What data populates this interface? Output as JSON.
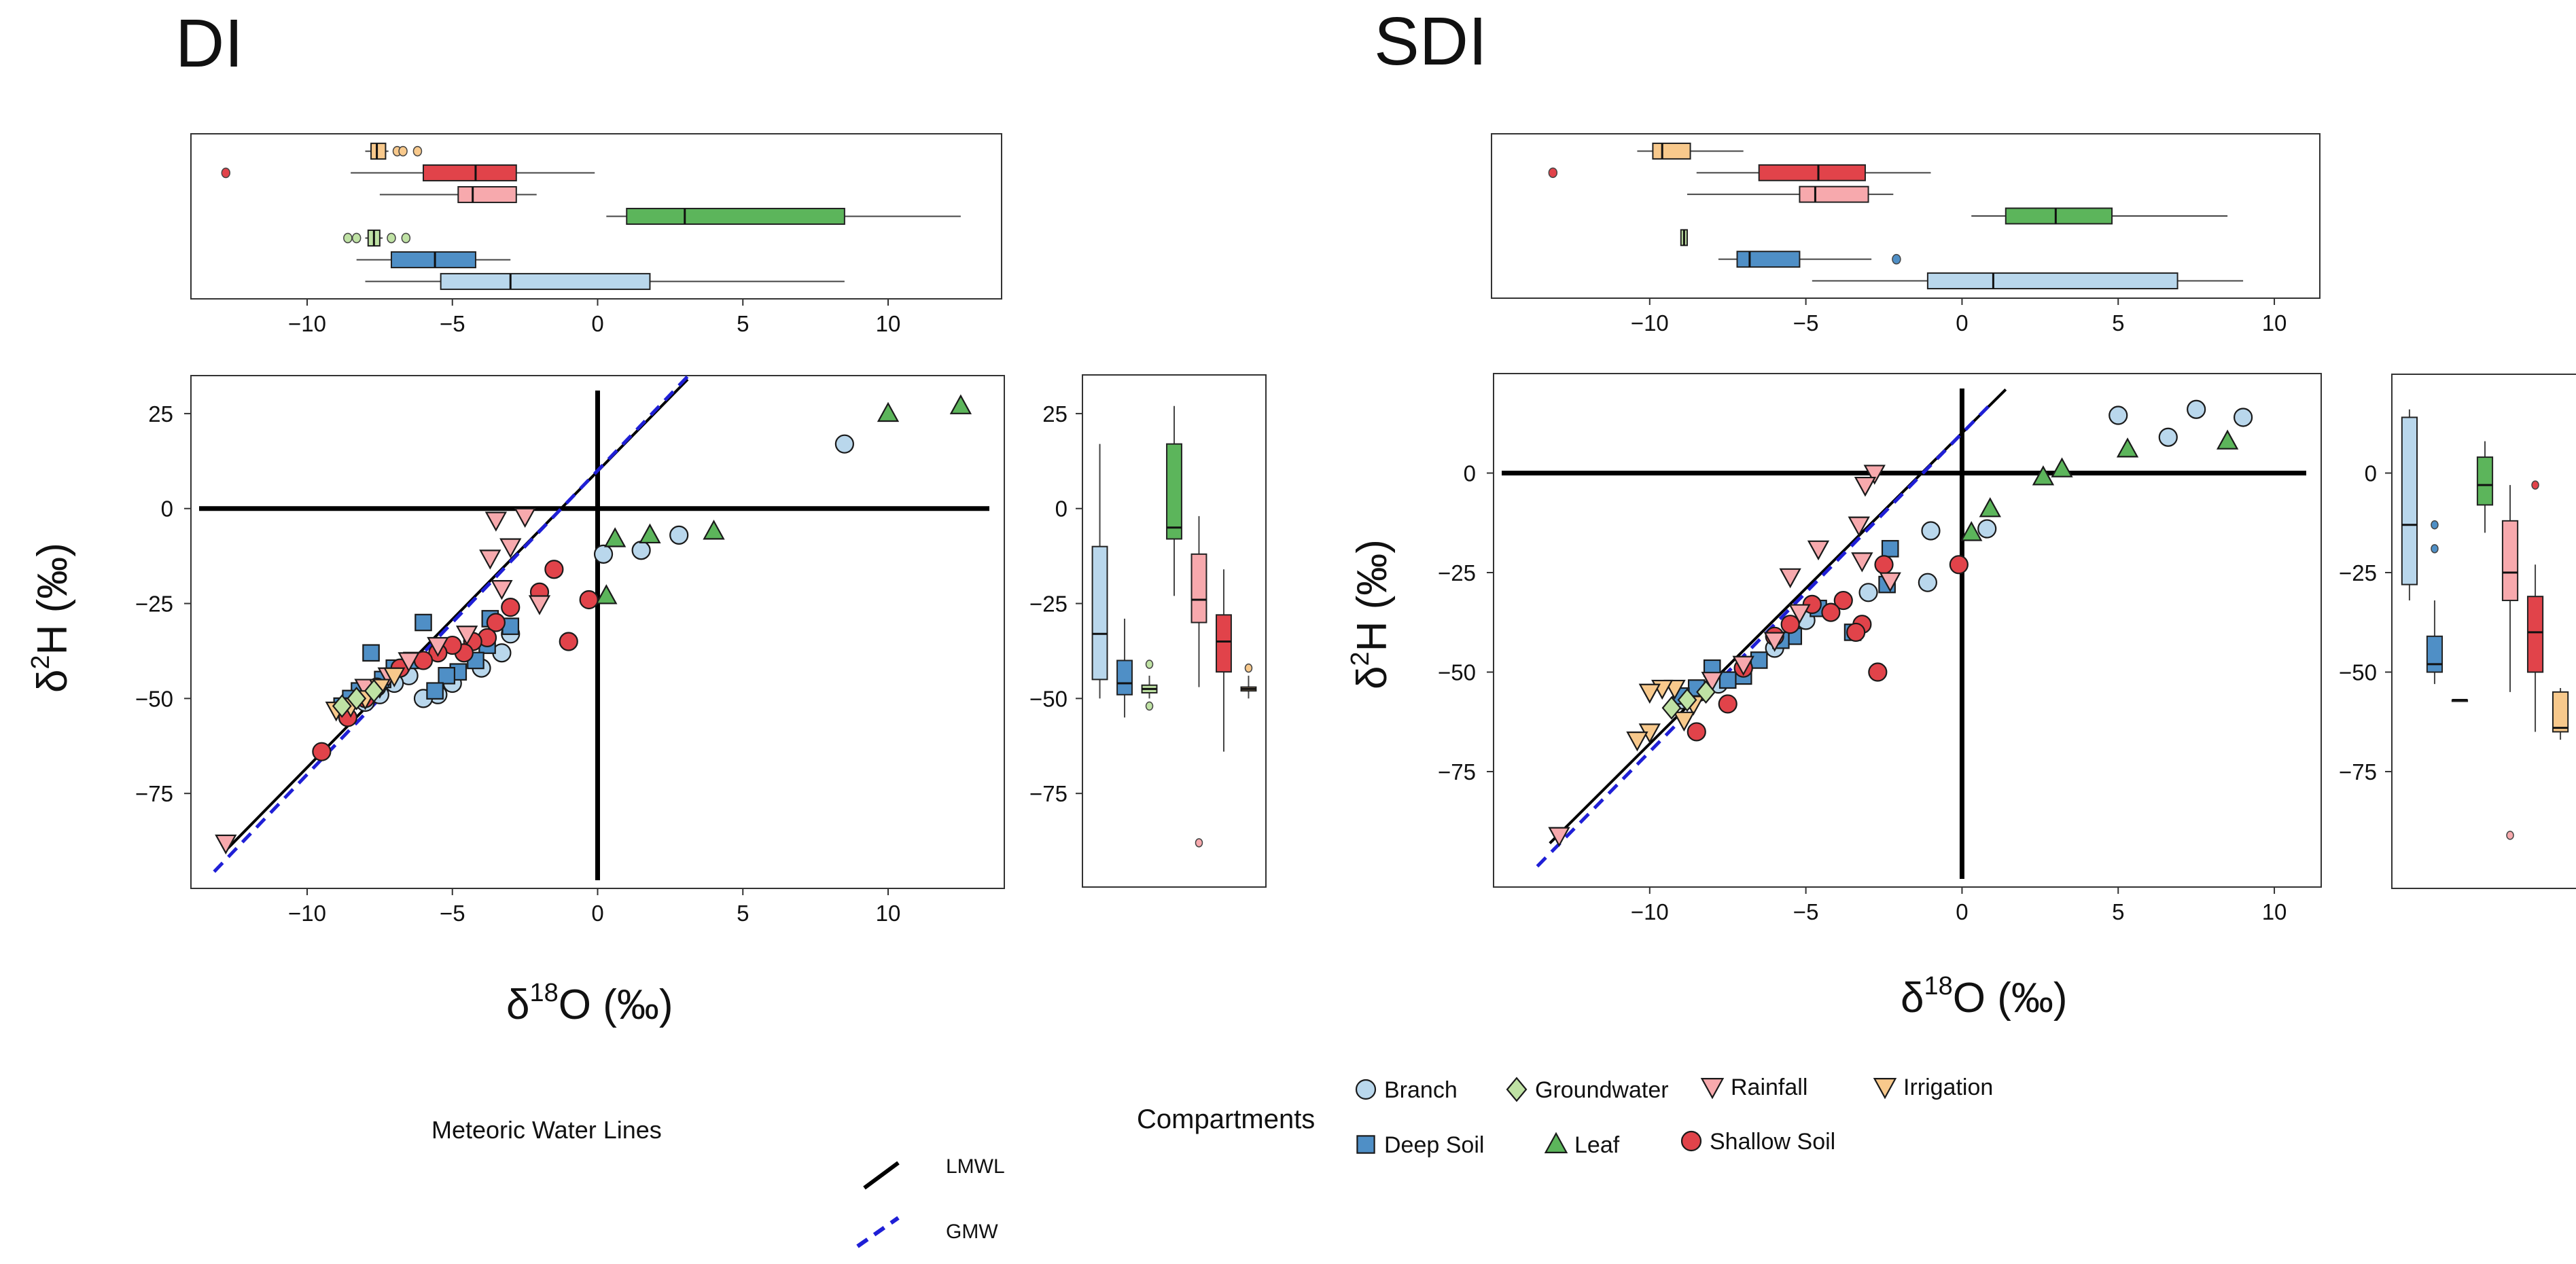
{
  "titles": {
    "left": "DI",
    "right": "SDI"
  },
  "axes": {
    "xlabel": "δ18O (‰)",
    "ylabel": "δ2H (‰)",
    "xlabel_base": "δ",
    "xlabel_sup": "18",
    "xlabel_tail": "O (‰)",
    "ylabel_base": "δ",
    "ylabel_sup": "2",
    "ylabel_tail": "H (‰)"
  },
  "legend": {
    "mwl_title": "Meteoric Water Lines",
    "lmwl": "LMWL",
    "gmw": "GMW",
    "compartments_title": "Compartments",
    "items": [
      {
        "key": "branch",
        "label": "Branch",
        "marker": "circle",
        "color": "#b9d7ec"
      },
      {
        "key": "groundwater",
        "label": "Groundwater",
        "marker": "diamond",
        "color": "#bfe2a4"
      },
      {
        "key": "rainfall",
        "label": "Rainfall",
        "marker": "tri-down",
        "color": "#f7a9ad"
      },
      {
        "key": "irrigation",
        "label": "Irrigation",
        "marker": "tri-down",
        "color": "#f8c98c"
      },
      {
        "key": "deep_soil",
        "label": "Deep Soil",
        "marker": "square",
        "color": "#4f8fc6"
      },
      {
        "key": "leaf",
        "label": "Leaf",
        "marker": "triangle",
        "color": "#5cb55b"
      },
      {
        "key": "shallow_soil",
        "label": "Shallow Soil",
        "marker": "circle",
        "color": "#e1434a"
      }
    ]
  },
  "chart_data": [
    {
      "panel": "DI",
      "type": "scatter",
      "title": "DI",
      "xlabel": "δ18O (‰)",
      "ylabel": "δ2H (‰)",
      "xlim": [
        -14,
        14
      ],
      "ylim": [
        -100,
        35
      ],
      "xticks": [
        -10,
        -5,
        0,
        5,
        10
      ],
      "yticks": [
        25,
        0,
        -25,
        -50,
        -75
      ],
      "lines": {
        "lmwl": {
          "x": [
            -12.8,
            3.1
          ],
          "y": [
            -90,
            34
          ]
        },
        "gmw": {
          "x": [
            -13.2,
            3.2
          ],
          "y": [
            -95.6,
            35.6
          ]
        }
      },
      "series": [
        {
          "key": "branch",
          "points": [
            [
              8.5,
              17
            ],
            [
              2.8,
              -7
            ],
            [
              1.5,
              -11
            ],
            [
              0.2,
              -12
            ],
            [
              -3,
              -33
            ],
            [
              -3.3,
              -38
            ],
            [
              -4,
              -42
            ],
            [
              -5,
              -46
            ],
            [
              -5.5,
              -49
            ],
            [
              -6,
              -50
            ],
            [
              -6.5,
              -44
            ],
            [
              -7,
              -46
            ],
            [
              -7.5,
              -49
            ],
            [
              -8,
              -51
            ]
          ]
        },
        {
          "key": "deep_soil",
          "points": [
            [
              -3.7,
              -29
            ],
            [
              -3,
              -31
            ],
            [
              -3.8,
              -36
            ],
            [
              -4.2,
              -40
            ],
            [
              -4.8,
              -43
            ],
            [
              -5.2,
              -44
            ],
            [
              -5.6,
              -48
            ],
            [
              -6,
              -30
            ],
            [
              -6.4,
              -40
            ],
            [
              -7,
              -42
            ],
            [
              -7.4,
              -45
            ],
            [
              -7.8,
              -38
            ],
            [
              -8.2,
              -48
            ],
            [
              -8.5,
              -50
            ],
            [
              -8.8,
              -52
            ]
          ]
        },
        {
          "key": "leaf",
          "points": [
            [
              12.5,
              27
            ],
            [
              10,
              25
            ],
            [
              4,
              -6
            ],
            [
              1.8,
              -7
            ],
            [
              0.6,
              -8
            ],
            [
              0.3,
              -23
            ]
          ]
        },
        {
          "key": "shallow_soil",
          "points": [
            [
              -1.5,
              -16
            ],
            [
              -1,
              -35
            ],
            [
              -2,
              -22
            ],
            [
              -3,
              -26
            ],
            [
              -3.5,
              -30
            ],
            [
              -3.8,
              -34
            ],
            [
              -4.3,
              -35
            ],
            [
              -4.6,
              -38
            ],
            [
              -5,
              -36
            ],
            [
              -5.5,
              -38
            ],
            [
              -6,
              -40
            ],
            [
              -6.8,
              -42
            ],
            [
              -7.6,
              -47
            ],
            [
              -8,
              -50
            ],
            [
              -8.6,
              -55
            ],
            [
              -9.5,
              -64
            ],
            [
              -0.3,
              -24
            ]
          ]
        },
        {
          "key": "rainfall",
          "points": [
            [
              -12.8,
              -88
            ],
            [
              -2.5,
              -2
            ],
            [
              -3.5,
              -3
            ],
            [
              -3,
              -10
            ],
            [
              -3.7,
              -13
            ],
            [
              -3.3,
              -21
            ],
            [
              -2,
              -25
            ],
            [
              -4.5,
              -33
            ],
            [
              -5.5,
              -36
            ],
            [
              -6.5,
              -40
            ],
            [
              -7.2,
              -44
            ],
            [
              -8,
              -47
            ]
          ]
        },
        {
          "key": "irrigation",
          "points": [
            [
              -7,
              -44
            ],
            [
              -7.5,
              -47
            ],
            [
              -8,
              -50
            ],
            [
              -8.5,
              -52
            ],
            [
              -9,
              -53
            ]
          ]
        },
        {
          "key": "groundwater",
          "points": [
            [
              -7.7,
              -48
            ],
            [
              -8.3,
              -50
            ],
            [
              -8.8,
              -52
            ]
          ]
        }
      ],
      "boxplot_x": [
        {
          "key": "irrigation",
          "q1": -7.8,
          "median": -7.6,
          "q3": -7.3,
          "whislo": -8,
          "whishi": -7.2,
          "fliers": [
            -6.9,
            -6.7,
            -6.2
          ]
        },
        {
          "key": "shallow_soil",
          "q1": -6,
          "median": -4.2,
          "q3": -2.8,
          "whislo": -8.5,
          "whishi": -0.1,
          "fliers": [
            -12.8
          ]
        },
        {
          "key": "rainfall",
          "q1": -4.8,
          "median": -4.3,
          "q3": -2.8,
          "whislo": -7.5,
          "whishi": -2.1,
          "fliers": []
        },
        {
          "key": "leaf",
          "q1": 1,
          "median": 3,
          "q3": 8.5,
          "whislo": 0.3,
          "whishi": 12.5,
          "fliers": []
        },
        {
          "key": "groundwater",
          "q1": -7.9,
          "median": -7.7,
          "q3": -7.5,
          "whislo": -8,
          "whishi": -7.4,
          "fliers": [
            -8.6,
            -8.3,
            -7.1,
            -6.6
          ]
        },
        {
          "key": "deep_soil",
          "q1": -7.1,
          "median": -5.6,
          "q3": -4.2,
          "whislo": -8.3,
          "whishi": -3,
          "fliers": []
        },
        {
          "key": "branch",
          "q1": -5.4,
          "median": -3,
          "q3": 1.8,
          "whislo": -8,
          "whishi": 8.5,
          "fliers": []
        }
      ],
      "boxplot_y": [
        {
          "key": "branch",
          "q1": -45,
          "median": -33,
          "q3": -10,
          "whislo": -50,
          "whishi": 17,
          "fliers": []
        },
        {
          "key": "deep_soil",
          "q1": -49,
          "median": -46,
          "q3": -40,
          "whislo": -55,
          "whishi": -29,
          "fliers": []
        },
        {
          "key": "groundwater",
          "q1": -48.5,
          "median": -47.5,
          "q3": -46.5,
          "whislo": -50,
          "whishi": -44,
          "fliers": [
            -52,
            -41
          ]
        },
        {
          "key": "leaf",
          "q1": -8,
          "median": -5,
          "q3": 17,
          "whislo": -23,
          "whishi": 27,
          "fliers": []
        },
        {
          "key": "rainfall",
          "q1": -30,
          "median": -24,
          "q3": -12,
          "whislo": -47,
          "whishi": -2,
          "fliers": [
            -88
          ]
        },
        {
          "key": "shallow_soil",
          "q1": -43,
          "median": -35,
          "q3": -28,
          "whislo": -64,
          "whishi": -16,
          "fliers": []
        },
        {
          "key": "irrigation",
          "q1": -48,
          "median": -47.5,
          "q3": -47,
          "whislo": -50,
          "whishi": -44,
          "fliers": [
            -42
          ]
        }
      ]
    },
    {
      "panel": "SDI",
      "type": "scatter",
      "title": "SDI",
      "xlabel": "δ18O (‰)",
      "ylabel": "δ2H (‰)",
      "xlim": [
        -15,
        11.5
      ],
      "ylim": [
        -104,
        25
      ],
      "xticks": [
        -10,
        -5,
        0,
        5,
        10
      ],
      "yticks": [
        0,
        -25,
        -50,
        -75
      ],
      "lines": {
        "lmwl": {
          "x": [
            -13.2,
            1.4
          ],
          "y": [
            -93,
            21
          ]
        },
        "gmw": {
          "x": [
            -13.6,
            1.0
          ],
          "y": [
            -98.8,
            18
          ]
        }
      },
      "series": [
        {
          "key": "branch",
          "points": [
            [
              5,
              14.5
            ],
            [
              7.5,
              16
            ],
            [
              9,
              14
            ],
            [
              6.6,
              9
            ],
            [
              0.8,
              -14
            ],
            [
              -1,
              -14.5
            ],
            [
              -1.1,
              -27.5
            ],
            [
              -3,
              -30
            ],
            [
              -5,
              -37
            ],
            [
              -6,
              -44
            ],
            [
              -7,
              -49
            ],
            [
              -7.8,
              -53
            ],
            [
              -8.4,
              -55
            ],
            [
              -9,
              -57
            ]
          ]
        },
        {
          "key": "deep_soil",
          "points": [
            [
              -2.3,
              -19
            ],
            [
              -2.4,
              -28
            ],
            [
              -3.5,
              -40
            ],
            [
              -4.6,
              -34
            ],
            [
              -5.4,
              -41
            ],
            [
              -5.8,
              -42
            ],
            [
              -6.5,
              -47
            ],
            [
              -7,
              -51
            ],
            [
              -7.5,
              -52
            ],
            [
              -8,
              -49
            ],
            [
              -8.5,
              -54
            ],
            [
              -9,
              -56
            ]
          ]
        },
        {
          "key": "leaf",
          "points": [
            [
              8.5,
              8
            ],
            [
              5.3,
              6
            ],
            [
              3.2,
              1
            ],
            [
              2.6,
              -1
            ],
            [
              0.9,
              -9
            ],
            [
              0.3,
              -15
            ]
          ]
        },
        {
          "key": "shallow_soil",
          "points": [
            [
              -0.1,
              -23
            ],
            [
              -2.5,
              -23
            ],
            [
              -2.7,
              -50
            ],
            [
              -3.2,
              -38
            ],
            [
              -3.4,
              -40
            ],
            [
              -3.8,
              -32
            ],
            [
              -4.2,
              -35
            ],
            [
              -4.8,
              -33
            ],
            [
              -5.5,
              -38
            ],
            [
              -6,
              -41
            ],
            [
              -7,
              -49
            ],
            [
              -7.5,
              -58
            ],
            [
              -8.5,
              -65
            ]
          ]
        },
        {
          "key": "rainfall",
          "points": [
            [
              -12.9,
              -91
            ],
            [
              -2.8,
              0
            ],
            [
              -3.1,
              -3
            ],
            [
              -3.3,
              -13
            ],
            [
              -3.2,
              -22
            ],
            [
              -2.3,
              -27
            ],
            [
              -5.5,
              -26
            ],
            [
              -4.6,
              -19
            ],
            [
              -5.2,
              -35
            ],
            [
              -6,
              -42
            ],
            [
              -7,
              -48
            ],
            [
              -8,
              -52
            ]
          ]
        },
        {
          "key": "irrigation",
          "points": [
            [
              -9.2,
              -54
            ],
            [
              -9.6,
              -54
            ],
            [
              -10,
              -55
            ],
            [
              -10,
              -65
            ],
            [
              -10.4,
              -67
            ],
            [
              -8.6,
              -58
            ],
            [
              -8.9,
              -62
            ]
          ]
        },
        {
          "key": "groundwater",
          "points": [
            [
              -8.2,
              -55
            ],
            [
              -8.8,
              -57
            ],
            [
              -9.3,
              -59
            ]
          ]
        }
      ],
      "boxplot_x": [
        {
          "key": "irrigation",
          "q1": -9.9,
          "median": -9.6,
          "q3": -8.7,
          "whislo": -10.4,
          "whishi": -7,
          "fliers": []
        },
        {
          "key": "shallow_soil",
          "q1": -6.5,
          "median": -4.6,
          "q3": -3.1,
          "whislo": -8.5,
          "whishi": -1,
          "fliers": [
            -13.1
          ]
        },
        {
          "key": "rainfall",
          "q1": -5.2,
          "median": -4.7,
          "q3": -3,
          "whislo": -8.8,
          "whishi": -2.2,
          "fliers": []
        },
        {
          "key": "leaf",
          "q1": 1.4,
          "median": 3,
          "q3": 4.8,
          "whislo": 0.3,
          "whishi": 8.5,
          "fliers": []
        },
        {
          "key": "groundwater",
          "q1": -9,
          "median": -8.9,
          "q3": -8.8,
          "whislo": -9,
          "whishi": -8.8,
          "fliers": []
        },
        {
          "key": "deep_soil",
          "q1": -7.2,
          "median": -6.8,
          "q3": -5.2,
          "whislo": -7.8,
          "whishi": -2.9,
          "fliers": [
            -2.1
          ]
        },
        {
          "key": "branch",
          "q1": -1.1,
          "median": 1,
          "q3": 6.9,
          "whislo": -4.8,
          "whishi": 9,
          "fliers": []
        }
      ],
      "boxplot_y": [
        {
          "key": "branch",
          "q1": -28,
          "median": -13,
          "q3": 14,
          "whislo": -32,
          "whishi": 16,
          "fliers": []
        },
        {
          "key": "deep_soil",
          "q1": -50,
          "median": -48,
          "q3": -41,
          "whislo": -53,
          "whishi": -32,
          "fliers": [
            -13,
            -19
          ]
        },
        {
          "key": "groundwater",
          "q1": -57,
          "median": -57,
          "q3": -57,
          "whislo": -57,
          "whishi": -57,
          "fliers": []
        },
        {
          "key": "leaf",
          "q1": -8,
          "median": -3,
          "q3": 4,
          "whislo": -15,
          "whishi": 8,
          "fliers": []
        },
        {
          "key": "rainfall",
          "q1": -32,
          "median": -25,
          "q3": -12,
          "whislo": -55,
          "whishi": -3,
          "fliers": [
            -91
          ]
        },
        {
          "key": "shallow_soil",
          "q1": -50,
          "median": -40,
          "q3": -31,
          "whislo": -65,
          "whishi": -23,
          "fliers": [
            -3
          ]
        },
        {
          "key": "irrigation",
          "q1": -65,
          "median": -64,
          "q3": -55,
          "whislo": -67,
          "whishi": -54,
          "fliers": []
        }
      ]
    }
  ]
}
